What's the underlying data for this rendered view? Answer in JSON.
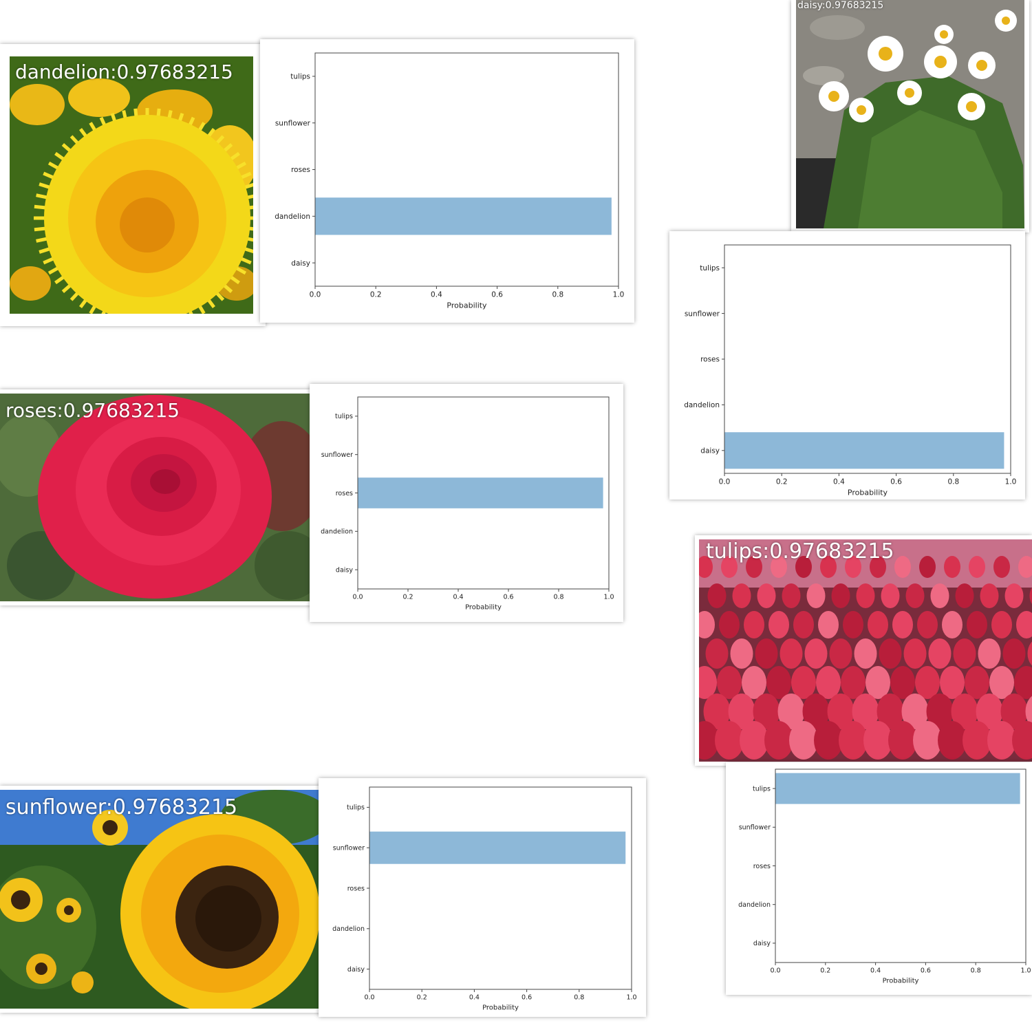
{
  "colors": {
    "bar": "#8db8d8",
    "axis": "#444444",
    "caption": "#ffffff"
  },
  "photos": [
    {
      "id": "dandelion",
      "caption": "dandelion:0.97683215",
      "icon": "dandelion-photo"
    },
    {
      "id": "daisy",
      "caption": "daisy:0.97683215",
      "icon": "daisy-photo"
    },
    {
      "id": "roses",
      "caption": "roses:0.97683215",
      "icon": "rose-photo"
    },
    {
      "id": "tulips",
      "caption": "tulips:0.97683215",
      "icon": "tulips-photo"
    },
    {
      "id": "sunflower",
      "caption": "sunflower:0.97683215",
      "icon": "sunflower-photo"
    }
  ],
  "chart_data": [
    {
      "type": "bar",
      "orientation": "horizontal",
      "categories": [
        "daisy",
        "dandelion",
        "roses",
        "sunflower",
        "tulips"
      ],
      "values": [
        0.0,
        0.977,
        0.0,
        0.0,
        0.0
      ],
      "xlabel": "Probability",
      "ylabel": "",
      "xlim": [
        0,
        1
      ],
      "xticks": [
        "0.0",
        "0.2",
        "0.4",
        "0.6",
        "0.8",
        "1.0"
      ],
      "grid": false
    },
    {
      "type": "bar",
      "orientation": "horizontal",
      "categories": [
        "daisy",
        "dandelion",
        "roses",
        "sunflower",
        "tulips"
      ],
      "values": [
        0.977,
        0.0,
        0.0,
        0.0,
        0.0
      ],
      "xlabel": "Probability",
      "ylabel": "",
      "xlim": [
        0,
        1
      ],
      "xticks": [
        "0.0",
        "0.2",
        "0.4",
        "0.6",
        "0.8",
        "1.0"
      ],
      "grid": false
    },
    {
      "type": "bar",
      "orientation": "horizontal",
      "categories": [
        "daisy",
        "dandelion",
        "roses",
        "sunflower",
        "tulips"
      ],
      "values": [
        0.0,
        0.0,
        0.977,
        0.0,
        0.0
      ],
      "xlabel": "Probability",
      "ylabel": "",
      "xlim": [
        0,
        1
      ],
      "xticks": [
        "0.0",
        "0.2",
        "0.4",
        "0.6",
        "0.8",
        "1.0"
      ],
      "grid": false
    },
    {
      "type": "bar",
      "orientation": "horizontal",
      "categories": [
        "daisy",
        "dandelion",
        "roses",
        "sunflower",
        "tulips"
      ],
      "values": [
        0.0,
        0.0,
        0.0,
        0.0,
        0.977
      ],
      "xlabel": "Probability",
      "ylabel": "",
      "xlim": [
        0,
        1
      ],
      "xticks": [
        "0.0",
        "0.2",
        "0.4",
        "0.6",
        "0.8",
        "1.0"
      ],
      "grid": false
    },
    {
      "type": "bar",
      "orientation": "horizontal",
      "categories": [
        "daisy",
        "dandelion",
        "roses",
        "sunflower",
        "tulips"
      ],
      "values": [
        0.0,
        0.0,
        0.0,
        0.977,
        0.0
      ],
      "xlabel": "Probability",
      "ylabel": "",
      "xlim": [
        0,
        1
      ],
      "xticks": [
        "0.0",
        "0.2",
        "0.4",
        "0.6",
        "0.8",
        "1.0"
      ],
      "grid": false
    }
  ]
}
